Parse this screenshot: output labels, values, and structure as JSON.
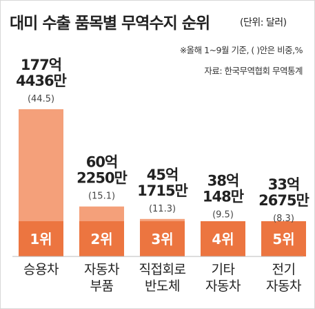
{
  "title": "대미 수출 품목별 무역수지 순위",
  "unit": "(단위: 달러)",
  "notes": [
    "※올해 1~9월 기준, ( )안은 비중,%",
    "자료: 한국무역협회 무역통계"
  ],
  "colors": {
    "bar": "#f4a07a",
    "rank_band": "#ec7540",
    "rank_text": "#ffffff"
  },
  "chart_data": {
    "type": "bar",
    "categories": [
      [
        "승용차"
      ],
      [
        "자동차",
        "부품"
      ],
      [
        "직접회로",
        "반도체"
      ],
      [
        "기타",
        "자동차"
      ],
      [
        "전기",
        "자동차"
      ]
    ],
    "value_labels": [
      [
        "177억",
        "4436만"
      ],
      [
        "60억",
        "2250만"
      ],
      [
        "45억",
        "1715만"
      ],
      [
        "38억",
        "148만"
      ],
      [
        "33억",
        "2675만"
      ]
    ],
    "values": [
      17744360000,
      6022500000,
      4517150000,
      3801480000,
      3326750000
    ],
    "shares": [
      "(44.5)",
      "(15.1)",
      "(11.3)",
      "(9.5)",
      "(8.3)"
    ],
    "ranks": [
      "1위",
      "2위",
      "3위",
      "4위",
      "5위"
    ]
  }
}
